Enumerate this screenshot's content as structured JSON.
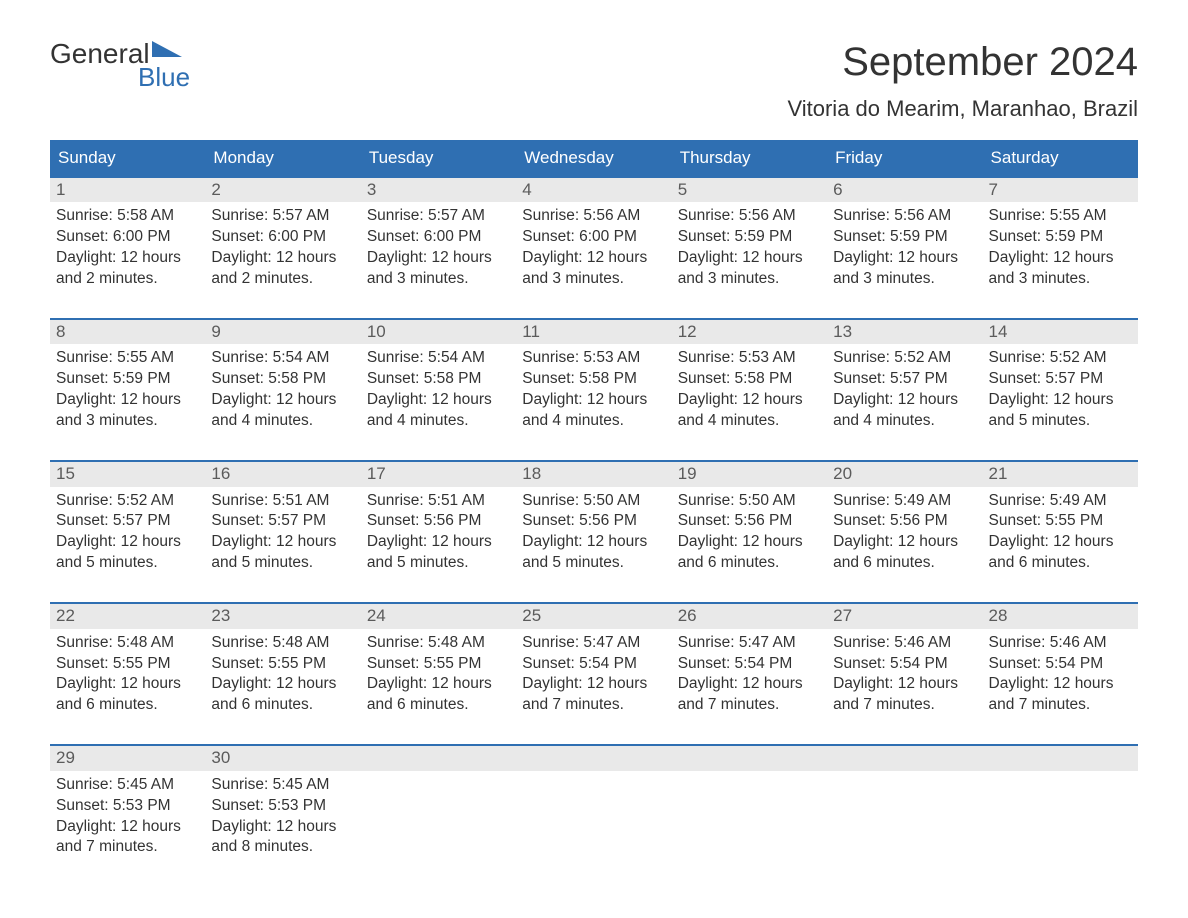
{
  "logo": {
    "word1": "General",
    "word2": "Blue"
  },
  "title": "September 2024",
  "location": "Vitoria do Mearim, Maranhao, Brazil",
  "colors": {
    "header_bg": "#2f6fb2",
    "header_text": "#ffffff",
    "daynum_bg": "#e9e9e9",
    "daynum_text": "#5b5b5b",
    "body_text": "#333333",
    "border": "#2f6fb2",
    "page_bg": "#ffffff",
    "logo_accent": "#2f6fb2"
  },
  "typography": {
    "title_fontsize": 40,
    "subtitle_fontsize": 22,
    "header_fontsize": 17,
    "daynum_fontsize": 17,
    "body_fontsize": 15.5,
    "font_family": "Arial"
  },
  "weekdays": [
    "Sunday",
    "Monday",
    "Tuesday",
    "Wednesday",
    "Thursday",
    "Friday",
    "Saturday"
  ],
  "weeks": [
    [
      {
        "num": "1",
        "sunrise": "Sunrise: 5:58 AM",
        "sunset": "Sunset: 6:00 PM",
        "day1": "Daylight: 12 hours",
        "day2": "and 2 minutes."
      },
      {
        "num": "2",
        "sunrise": "Sunrise: 5:57 AM",
        "sunset": "Sunset: 6:00 PM",
        "day1": "Daylight: 12 hours",
        "day2": "and 2 minutes."
      },
      {
        "num": "3",
        "sunrise": "Sunrise: 5:57 AM",
        "sunset": "Sunset: 6:00 PM",
        "day1": "Daylight: 12 hours",
        "day2": "and 3 minutes."
      },
      {
        "num": "4",
        "sunrise": "Sunrise: 5:56 AM",
        "sunset": "Sunset: 6:00 PM",
        "day1": "Daylight: 12 hours",
        "day2": "and 3 minutes."
      },
      {
        "num": "5",
        "sunrise": "Sunrise: 5:56 AM",
        "sunset": "Sunset: 5:59 PM",
        "day1": "Daylight: 12 hours",
        "day2": "and 3 minutes."
      },
      {
        "num": "6",
        "sunrise": "Sunrise: 5:56 AM",
        "sunset": "Sunset: 5:59 PM",
        "day1": "Daylight: 12 hours",
        "day2": "and 3 minutes."
      },
      {
        "num": "7",
        "sunrise": "Sunrise: 5:55 AM",
        "sunset": "Sunset: 5:59 PM",
        "day1": "Daylight: 12 hours",
        "day2": "and 3 minutes."
      }
    ],
    [
      {
        "num": "8",
        "sunrise": "Sunrise: 5:55 AM",
        "sunset": "Sunset: 5:59 PM",
        "day1": "Daylight: 12 hours",
        "day2": "and 3 minutes."
      },
      {
        "num": "9",
        "sunrise": "Sunrise: 5:54 AM",
        "sunset": "Sunset: 5:58 PM",
        "day1": "Daylight: 12 hours",
        "day2": "and 4 minutes."
      },
      {
        "num": "10",
        "sunrise": "Sunrise: 5:54 AM",
        "sunset": "Sunset: 5:58 PM",
        "day1": "Daylight: 12 hours",
        "day2": "and 4 minutes."
      },
      {
        "num": "11",
        "sunrise": "Sunrise: 5:53 AM",
        "sunset": "Sunset: 5:58 PM",
        "day1": "Daylight: 12 hours",
        "day2": "and 4 minutes."
      },
      {
        "num": "12",
        "sunrise": "Sunrise: 5:53 AM",
        "sunset": "Sunset: 5:58 PM",
        "day1": "Daylight: 12 hours",
        "day2": "and 4 minutes."
      },
      {
        "num": "13",
        "sunrise": "Sunrise: 5:52 AM",
        "sunset": "Sunset: 5:57 PM",
        "day1": "Daylight: 12 hours",
        "day2": "and 4 minutes."
      },
      {
        "num": "14",
        "sunrise": "Sunrise: 5:52 AM",
        "sunset": "Sunset: 5:57 PM",
        "day1": "Daylight: 12 hours",
        "day2": "and 5 minutes."
      }
    ],
    [
      {
        "num": "15",
        "sunrise": "Sunrise: 5:52 AM",
        "sunset": "Sunset: 5:57 PM",
        "day1": "Daylight: 12 hours",
        "day2": "and 5 minutes."
      },
      {
        "num": "16",
        "sunrise": "Sunrise: 5:51 AM",
        "sunset": "Sunset: 5:57 PM",
        "day1": "Daylight: 12 hours",
        "day2": "and 5 minutes."
      },
      {
        "num": "17",
        "sunrise": "Sunrise: 5:51 AM",
        "sunset": "Sunset: 5:56 PM",
        "day1": "Daylight: 12 hours",
        "day2": "and 5 minutes."
      },
      {
        "num": "18",
        "sunrise": "Sunrise: 5:50 AM",
        "sunset": "Sunset: 5:56 PM",
        "day1": "Daylight: 12 hours",
        "day2": "and 5 minutes."
      },
      {
        "num": "19",
        "sunrise": "Sunrise: 5:50 AM",
        "sunset": "Sunset: 5:56 PM",
        "day1": "Daylight: 12 hours",
        "day2": "and 6 minutes."
      },
      {
        "num": "20",
        "sunrise": "Sunrise: 5:49 AM",
        "sunset": "Sunset: 5:56 PM",
        "day1": "Daylight: 12 hours",
        "day2": "and 6 minutes."
      },
      {
        "num": "21",
        "sunrise": "Sunrise: 5:49 AM",
        "sunset": "Sunset: 5:55 PM",
        "day1": "Daylight: 12 hours",
        "day2": "and 6 minutes."
      }
    ],
    [
      {
        "num": "22",
        "sunrise": "Sunrise: 5:48 AM",
        "sunset": "Sunset: 5:55 PM",
        "day1": "Daylight: 12 hours",
        "day2": "and 6 minutes."
      },
      {
        "num": "23",
        "sunrise": "Sunrise: 5:48 AM",
        "sunset": "Sunset: 5:55 PM",
        "day1": "Daylight: 12 hours",
        "day2": "and 6 minutes."
      },
      {
        "num": "24",
        "sunrise": "Sunrise: 5:48 AM",
        "sunset": "Sunset: 5:55 PM",
        "day1": "Daylight: 12 hours",
        "day2": "and 6 minutes."
      },
      {
        "num": "25",
        "sunrise": "Sunrise: 5:47 AM",
        "sunset": "Sunset: 5:54 PM",
        "day1": "Daylight: 12 hours",
        "day2": "and 7 minutes."
      },
      {
        "num": "26",
        "sunrise": "Sunrise: 5:47 AM",
        "sunset": "Sunset: 5:54 PM",
        "day1": "Daylight: 12 hours",
        "day2": "and 7 minutes."
      },
      {
        "num": "27",
        "sunrise": "Sunrise: 5:46 AM",
        "sunset": "Sunset: 5:54 PM",
        "day1": "Daylight: 12 hours",
        "day2": "and 7 minutes."
      },
      {
        "num": "28",
        "sunrise": "Sunrise: 5:46 AM",
        "sunset": "Sunset: 5:54 PM",
        "day1": "Daylight: 12 hours",
        "day2": "and 7 minutes."
      }
    ],
    [
      {
        "num": "29",
        "sunrise": "Sunrise: 5:45 AM",
        "sunset": "Sunset: 5:53 PM",
        "day1": "Daylight: 12 hours",
        "day2": "and 7 minutes."
      },
      {
        "num": "30",
        "sunrise": "Sunrise: 5:45 AM",
        "sunset": "Sunset: 5:53 PM",
        "day1": "Daylight: 12 hours",
        "day2": "and 8 minutes."
      },
      {
        "empty": true
      },
      {
        "empty": true
      },
      {
        "empty": true
      },
      {
        "empty": true
      },
      {
        "empty": true
      }
    ]
  ]
}
